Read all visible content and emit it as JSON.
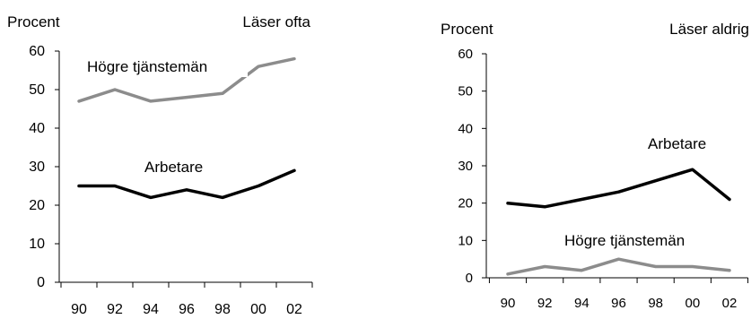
{
  "chart_data": [
    {
      "type": "line",
      "ylabel": "Procent",
      "title": "Läser ofta",
      "x": [
        "90",
        "92",
        "94",
        "96",
        "98",
        "00",
        "02"
      ],
      "ylim": [
        0,
        60
      ],
      "yticks": [
        0,
        10,
        20,
        30,
        40,
        50,
        60
      ],
      "grid": false,
      "series": [
        {
          "name": "Högre tjänstemän",
          "color": "#8c8c8c",
          "values": [
            47,
            50,
            47,
            48,
            49,
            56,
            58
          ]
        },
        {
          "name": "Arbetare",
          "color": "#000000",
          "values": [
            25,
            25,
            22,
            24,
            22,
            25,
            29
          ]
        }
      ]
    },
    {
      "type": "line",
      "ylabel": "Procent",
      "title": "Läser aldrig",
      "x": [
        "90",
        "92",
        "94",
        "96",
        "98",
        "00",
        "02"
      ],
      "ylim": [
        0,
        60
      ],
      "yticks": [
        0,
        10,
        20,
        30,
        40,
        50,
        60
      ],
      "grid": false,
      "series": [
        {
          "name": "Arbetare",
          "color": "#000000",
          "values": [
            20,
            19,
            21,
            23,
            26,
            29,
            21
          ]
        },
        {
          "name": "Högre tjänstemän",
          "color": "#8c8c8c",
          "values": [
            1,
            3,
            2,
            5,
            3,
            3,
            2
          ]
        }
      ]
    }
  ]
}
